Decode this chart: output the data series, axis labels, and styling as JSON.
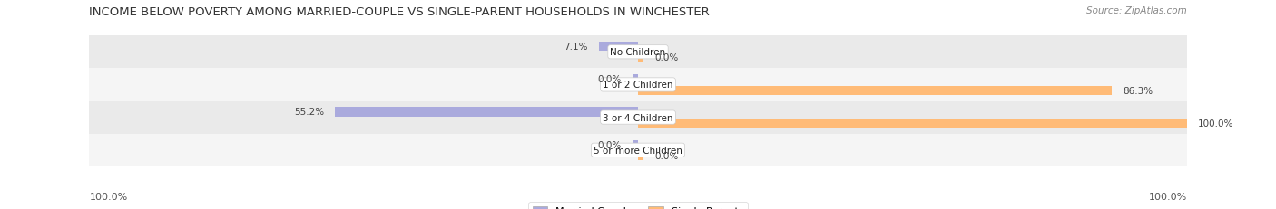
{
  "title": "INCOME BELOW POVERTY AMONG MARRIED-COUPLE VS SINGLE-PARENT HOUSEHOLDS IN WINCHESTER",
  "source": "Source: ZipAtlas.com",
  "categories": [
    "No Children",
    "1 or 2 Children",
    "3 or 4 Children",
    "5 or more Children"
  ],
  "married_values": [
    7.1,
    0.0,
    55.2,
    0.0
  ],
  "single_values": [
    0.0,
    86.3,
    100.0,
    0.0
  ],
  "married_color": "#aaaadd",
  "single_color": "#ffbb77",
  "row_bg_light": "#f5f5f5",
  "row_bg_dark": "#eaeaea",
  "title_fontsize": 9.5,
  "label_fontsize": 8,
  "axis_max": 100.0,
  "fig_width": 14.06,
  "fig_height": 2.32
}
